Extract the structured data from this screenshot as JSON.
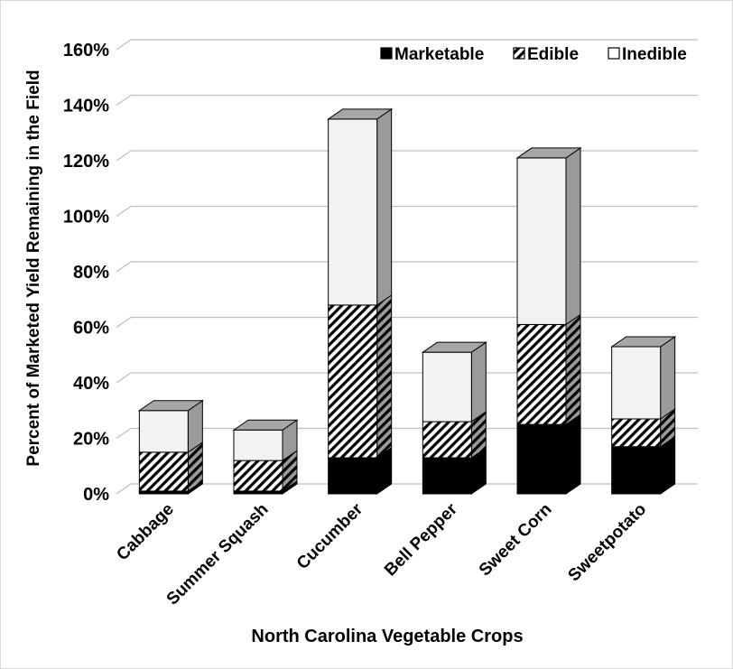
{
  "chart_data": {
    "type": "bar",
    "stacked": true,
    "three_d": true,
    "title": "",
    "xlabel": "North Carolina Vegetable Crops",
    "ylabel": "Percent of Marketed Yield Remaining in the Field",
    "ylim": [
      0,
      160
    ],
    "yticks": [
      "0%",
      "20%",
      "40%",
      "60%",
      "80%",
      "100%",
      "120%",
      "140%",
      "160%"
    ],
    "grid": true,
    "legend_position": "top-right",
    "categories": [
      "Cabbage",
      "Summer Squash",
      "Cucumber",
      "Bell Pepper",
      "Sweet Corn",
      "Sweetpotato"
    ],
    "series": [
      {
        "name": "Marketable",
        "values": [
          1,
          1,
          13,
          13,
          25,
          17
        ],
        "color": "#000000"
      },
      {
        "name": "Edible",
        "values": [
          14,
          11,
          55,
          13,
          36,
          10
        ],
        "color": "#ffffff",
        "pattern": "diagonal-hatch"
      },
      {
        "name": "Inedible",
        "values": [
          15,
          11,
          67,
          25,
          60,
          26
        ],
        "color": "#f2f2f2"
      }
    ]
  }
}
